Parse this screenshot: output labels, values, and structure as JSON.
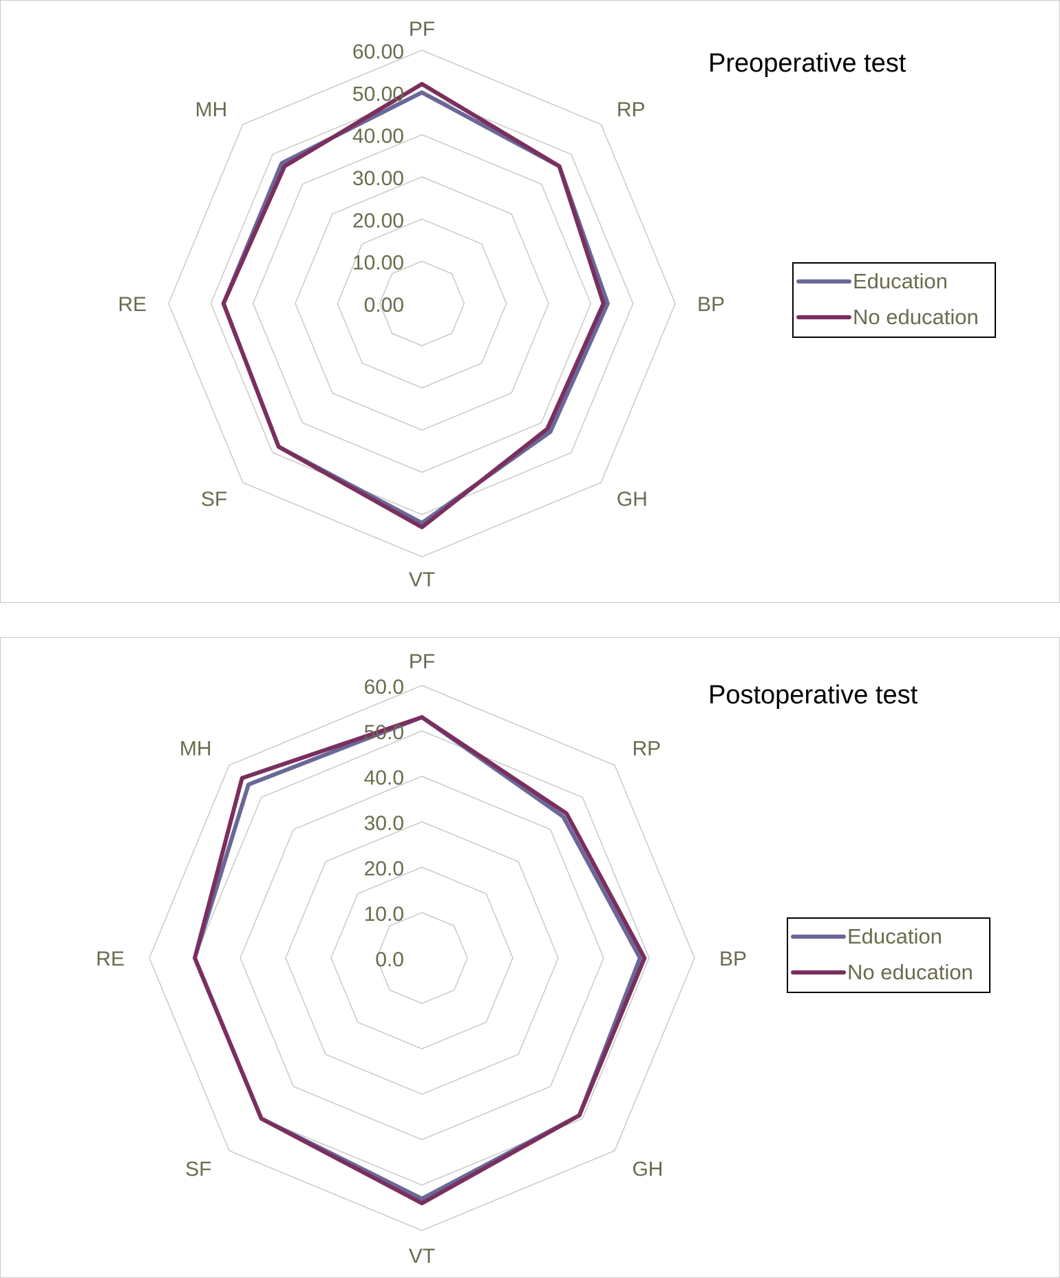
{
  "chart_data": [
    {
      "type": "radar",
      "title": "Preoperative test",
      "categories": [
        "PF",
        "RP",
        "BP",
        "GH",
        "VT",
        "SF",
        "RE",
        "MH"
      ],
      "scale": {
        "min": 0,
        "max": 60,
        "step": 10
      },
      "tick_labels": [
        "0.00",
        "10.00",
        "20.00",
        "30.00",
        "40.00",
        "50.00",
        "60.00"
      ],
      "grid": true,
      "legend_position": "right",
      "series": [
        {
          "name": "Education",
          "color": "#6a6898",
          "values": [
            50,
            46,
            44,
            43,
            52,
            48,
            47,
            47
          ]
        },
        {
          "name": "No education",
          "color": "#7a2f5e",
          "values": [
            52,
            46,
            43,
            42,
            53,
            48,
            47,
            46
          ]
        }
      ]
    },
    {
      "type": "radar",
      "title": "Postoperative test",
      "categories": [
        "PF",
        "RP",
        "BP",
        "GH",
        "VT",
        "SF",
        "RE",
        "MH"
      ],
      "scale": {
        "min": 0,
        "max": 60,
        "step": 10
      },
      "tick_labels": [
        "0.0",
        "10.0",
        "20.0",
        "30.0",
        "40.0",
        "50.0",
        "60.0"
      ],
      "grid": true,
      "legend_position": "right",
      "series": [
        {
          "name": "Education",
          "color": "#6a6898",
          "values": [
            53,
            44,
            48,
            49,
            53,
            50,
            50,
            54
          ]
        },
        {
          "name": "No education",
          "color": "#7a2f5e",
          "values": [
            53,
            45,
            49,
            49,
            54,
            50,
            50,
            56
          ]
        }
      ]
    }
  ]
}
